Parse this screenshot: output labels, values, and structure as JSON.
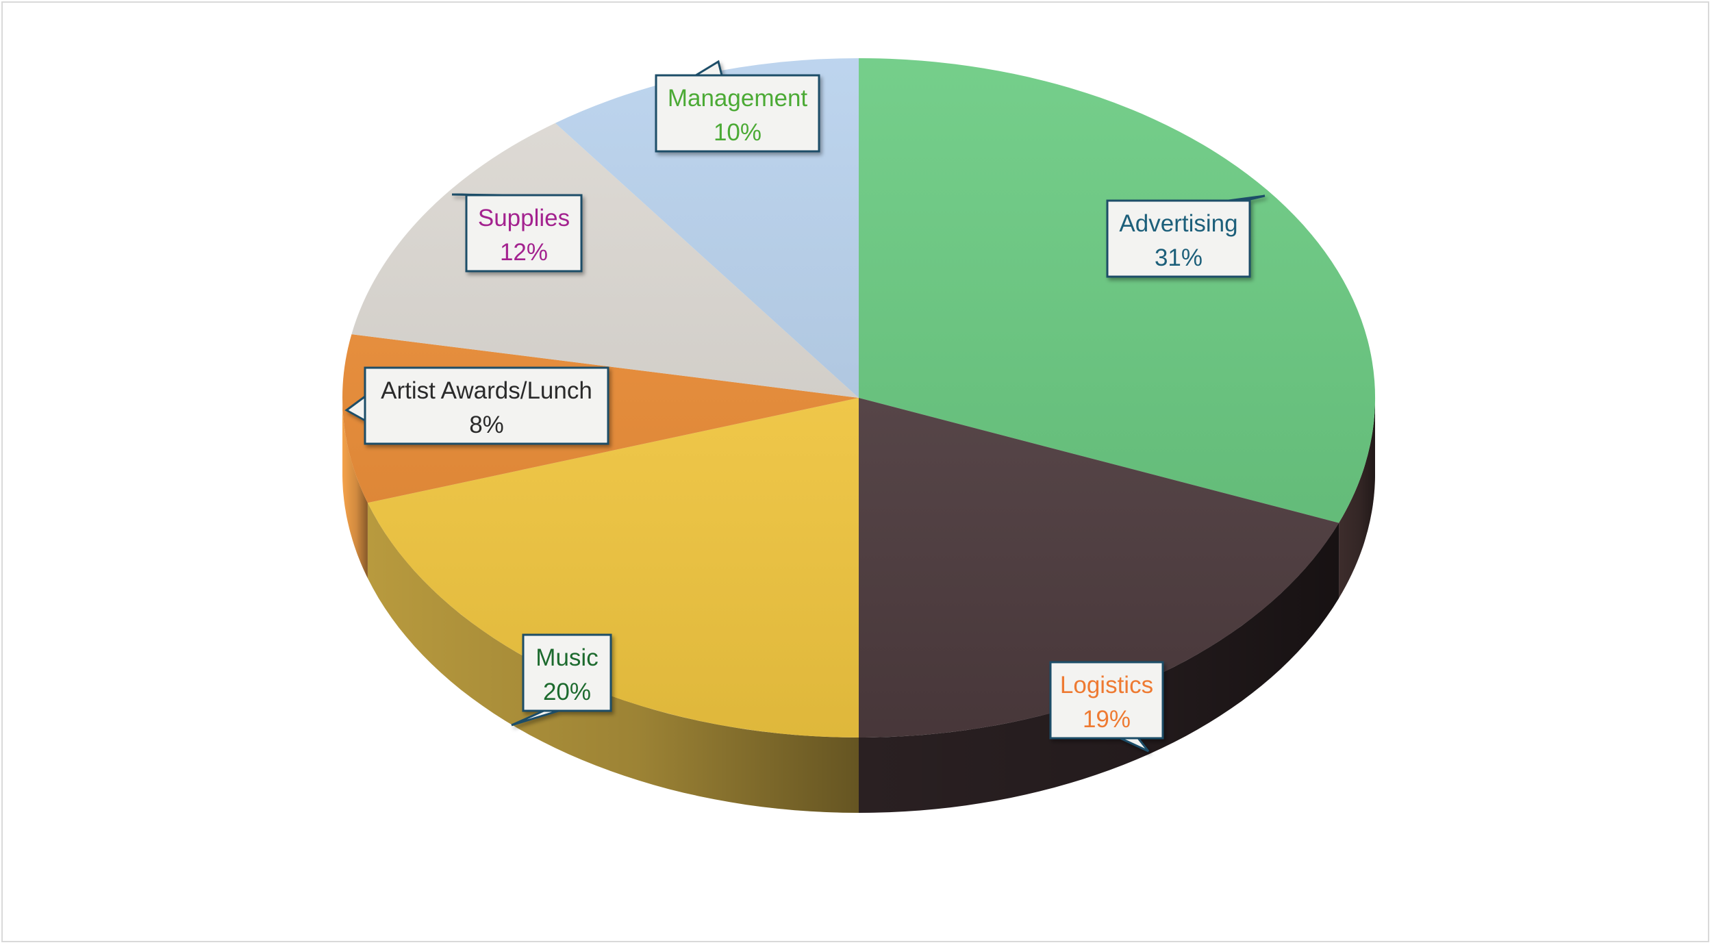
{
  "chart_data": {
    "type": "pie",
    "variant": "3d",
    "title": "",
    "slices": [
      {
        "name": "Advertising",
        "value": 31,
        "label": "31%",
        "color": "#66c97e",
        "side_color": "#3d2d2c",
        "text_color": "#1f5f7a"
      },
      {
        "name": "Logistics",
        "value": 19,
        "label": "19%",
        "color": "#513e41",
        "side_color": "#2a2022",
        "text_color": "#ee7a30"
      },
      {
        "name": "Music",
        "value": 20,
        "label": "20%",
        "color": "#fdd043",
        "side_color": "#b89a3e",
        "text_color": "#1e6b2e"
      },
      {
        "name": "Artist Awards/Lunch",
        "value": 8,
        "label": "8%",
        "color": "#ef8d33",
        "side_color": "#f5a24a",
        "text_color": "#2b2b2b"
      },
      {
        "name": "Supplies",
        "value": 12,
        "label": "12%",
        "color": "#dcd8d2",
        "side_color": "#c9c4bd",
        "text_color": "#a3228f"
      },
      {
        "name": "Management",
        "value": 10,
        "label": "10%",
        "color": "#b6d0ec",
        "side_color": "#9fbad8",
        "text_color": "#4caa35"
      }
    ],
    "legend": "none",
    "data_labels": "callouts"
  }
}
